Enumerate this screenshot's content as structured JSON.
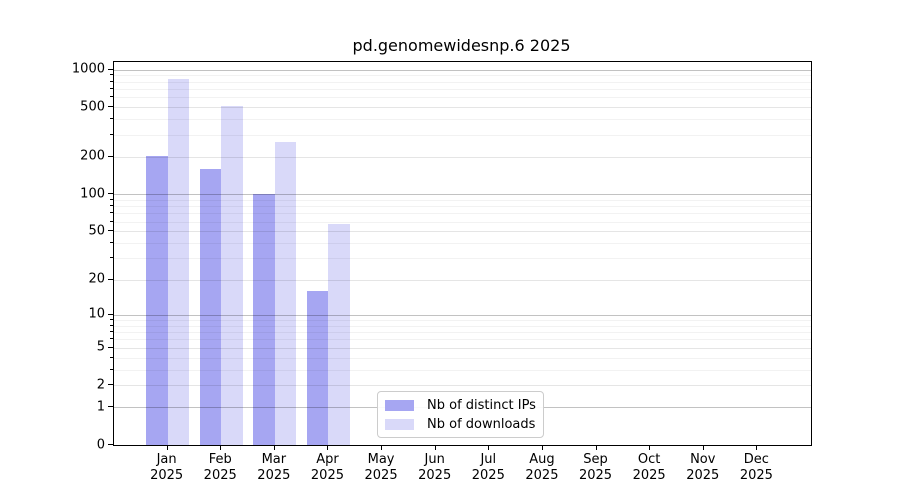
{
  "chart_data": {
    "type": "bar",
    "title": "pd.genomewidesnp.6 2025",
    "categories": [
      "Jan 2025",
      "Feb 2025",
      "Mar 2025",
      "Apr 2025",
      "May 2025",
      "Jun 2025",
      "Jul 2025",
      "Aug 2025",
      "Sep 2025",
      "Oct 2025",
      "Nov 2025",
      "Dec 2025"
    ],
    "x_tick_line1": [
      "Jan",
      "Feb",
      "Mar",
      "Apr",
      "May",
      "Jun",
      "Jul",
      "Aug",
      "Sep",
      "Oct",
      "Nov",
      "Dec"
    ],
    "x_tick_line2": "2025",
    "series": [
      {
        "name": "Nb of distinct IPs",
        "color": "#a6a6f2",
        "values": [
          205,
          160,
          100,
          16,
          0,
          0,
          0,
          0,
          0,
          0,
          0,
          0
        ]
      },
      {
        "name": "Nb of downloads",
        "color": "#d9d9f9",
        "values": [
          840,
          515,
          265,
          57,
          0,
          0,
          0,
          0,
          0,
          0,
          0,
          0
        ]
      }
    ],
    "y_scale": "log10(1+v)",
    "ylim": [
      0,
      1150
    ],
    "y_ticks": [
      0,
      1,
      2,
      5,
      10,
      20,
      50,
      100,
      200,
      500,
      1000
    ],
    "y_minor_ticks": [
      3,
      4,
      6,
      7,
      8,
      9,
      30,
      40,
      60,
      70,
      80,
      90,
      300,
      400,
      600,
      700,
      800,
      900
    ],
    "grid": "horizontal, major and minor, drawn over bars",
    "legend": {
      "position": "lower center",
      "entries": [
        "Nb of distinct IPs",
        "Nb of downloads"
      ]
    },
    "colors": {
      "bar_distinct_ips": "#a6a6f2",
      "bar_downloads": "#d9d9f9",
      "grid_major": "rgba(0,0,0,0.24)",
      "grid_mid": "rgba(0,0,0,0.10)",
      "grid_minor": "rgba(0,0,0,0.05)",
      "spine": "#000000",
      "text": "#000000",
      "background": "#ffffff",
      "legend_border": "#cccccc"
    }
  }
}
